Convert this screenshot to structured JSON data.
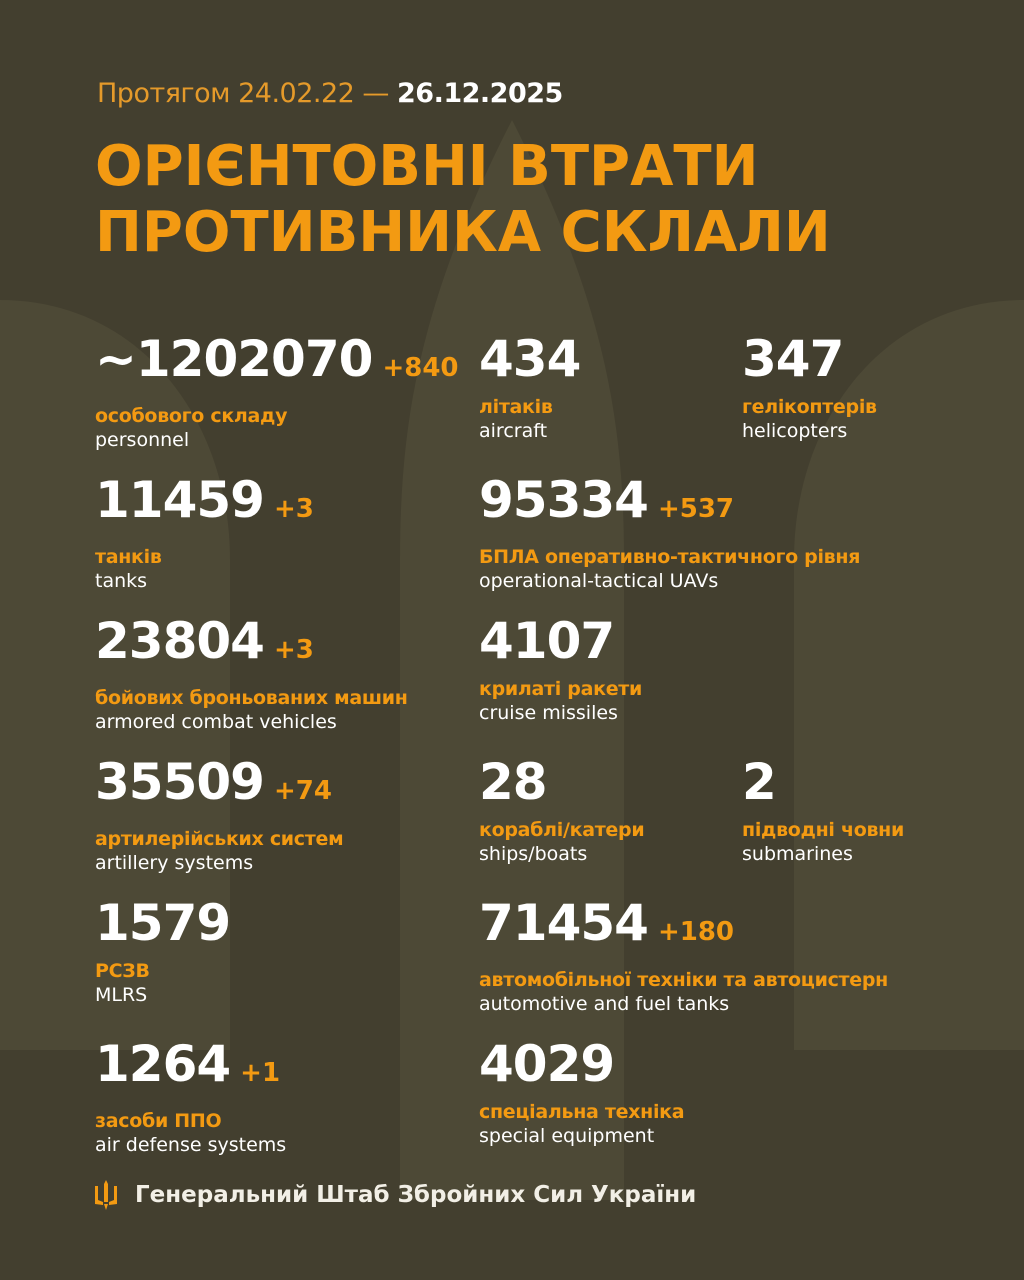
{
  "header": {
    "period_prefix": "Протягом 24.02.22 —",
    "period_end": "26.12.2025",
    "title_line1": "ОРІЄНТОВНІ ВТРАТИ",
    "title_line2": "ПРОТИВНИКА СКЛАЛИ"
  },
  "stats": {
    "personnel": {
      "value": "~1202070",
      "delta": "+840",
      "ua": "особового складу",
      "en": "personnel"
    },
    "aircraft": {
      "value": "434",
      "ua": "літаків",
      "en": "aircraft"
    },
    "helicopters": {
      "value": "347",
      "ua": "гелікоптерів",
      "en": "helicopters"
    },
    "tanks": {
      "value": "11459",
      "delta": "+3",
      "ua": "танків",
      "en": "tanks"
    },
    "uavs": {
      "value": "95334",
      "delta": "+537",
      "ua": "БПЛА оперативно-тактичного рівня",
      "en": "operational-tactical UAVs"
    },
    "acv": {
      "value": "23804",
      "delta": "+3",
      "ua": "бойових броньованих машин",
      "en": "armored combat vehicles"
    },
    "cruise": {
      "value": "4107",
      "ua": "крилаті ракети",
      "en": "cruise missiles"
    },
    "artillery": {
      "value": "35509",
      "delta": "+74",
      "ua": "артилерійських систем",
      "en": "artillery systems"
    },
    "ships": {
      "value": "28",
      "ua": "кораблі/катери",
      "en": "ships/boats"
    },
    "submarines": {
      "value": "2",
      "ua": "підводні човни",
      "en": "submarines"
    },
    "mlrs": {
      "value": "1579",
      "ua": "РСЗВ",
      "en": "MLRS"
    },
    "vehicles": {
      "value": "71454",
      "delta": "+180",
      "ua": "автомобільної техніки та автоцистерн",
      "en": "automotive and fuel tanks"
    },
    "airdefense": {
      "value": "1264",
      "delta": "+1",
      "ua": "засоби ППО",
      "en": "air defense systems"
    },
    "special": {
      "value": "4029",
      "ua": "спеціальна техніка",
      "en": "special equipment"
    }
  },
  "footer": {
    "icon": "trident-icon",
    "text": "Генеральний Штаб Збройних Сил України"
  },
  "colors": {
    "background": "#433f2f",
    "accent": "#f39a12",
    "text": "#ffffff"
  }
}
